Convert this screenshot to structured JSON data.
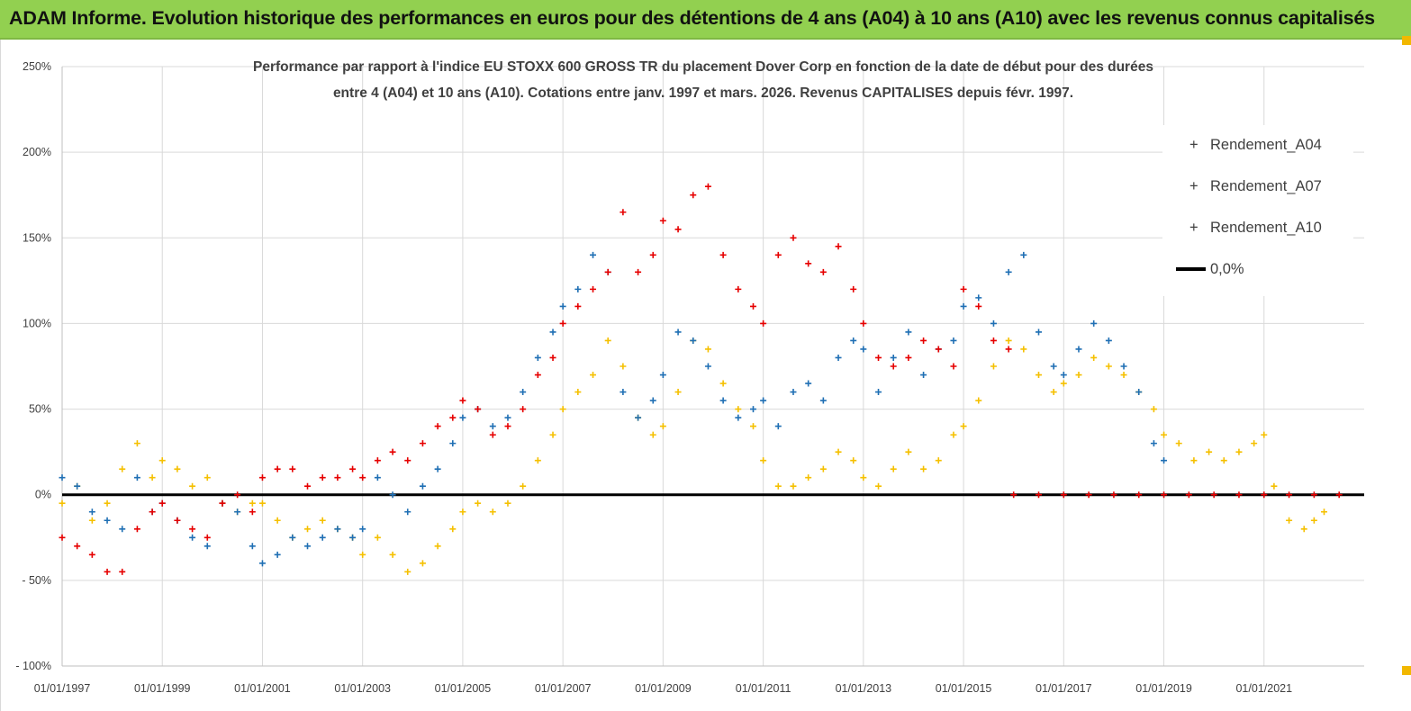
{
  "header": {
    "title": "ADAM Informe. Evolution historique des performances en euros pour des détentions de 4 ans (A04) à 10 ans (A10) avec les revenus connus capitalisés"
  },
  "colors": {
    "banner": "#92d050",
    "a04": "#f5c000",
    "a07": "#1f6fb4",
    "a10": "#e60000",
    "zero": "#000000",
    "grid": "#d9d9d9"
  },
  "chart_data": {
    "type": "scatter",
    "title_lines": [
      "Performance par rapport à l'indice EU STOXX 600 GROSS TR  du placement Dover Corp en fonction de la date de début pour des durées",
      "entre 4 (A04) et 10 ans (A10).  Cotations entre janv. 1997 et mars. 2026. Revenus CAPITALISES depuis févr. 1997."
    ],
    "xlabel": "",
    "ylabel": "",
    "x_range": [
      "1997-01-01",
      "2023-01-01"
    ],
    "ylim": [
      -100,
      250
    ],
    "y_ticks": [
      250,
      200,
      150,
      100,
      50,
      0,
      -50,
      -100
    ],
    "y_tick_labels": [
      "250%",
      "200%",
      "150%",
      "100%",
      "50%",
      "0%",
      "- 50%",
      "- 100%"
    ],
    "x_ticks": [
      "1997-01-01",
      "1999-01-01",
      "2001-01-01",
      "2003-01-01",
      "2005-01-01",
      "2007-01-01",
      "2009-01-01",
      "2011-01-01",
      "2013-01-01",
      "2015-01-01",
      "2017-01-01",
      "2019-01-01",
      "2021-01-01"
    ],
    "x_tick_labels": [
      "01/01/1997",
      "01/01/1999",
      "01/01/2001",
      "01/01/2003",
      "01/01/2005",
      "01/01/2007",
      "01/01/2009",
      "01/01/2011",
      "01/01/2013",
      "01/01/2015",
      "01/01/2017",
      "01/01/2019",
      "01/01/2021"
    ],
    "grid": true,
    "legend_position": "top-right",
    "legend": [
      "Rendement_A04",
      "Rendement_A07",
      "Rendement_A10",
      "0,0%"
    ],
    "series": [
      {
        "name": "Rendement_A04",
        "color": "#f5c000",
        "marker": "+",
        "x": [
          1997.0,
          1997.3,
          1997.6,
          1997.9,
          1998.2,
          1998.5,
          1998.8,
          1999.0,
          1999.3,
          1999.6,
          1999.9,
          2000.2,
          2000.5,
          2000.8,
          2001.0,
          2001.3,
          2001.6,
          2001.9,
          2002.2,
          2002.5,
          2002.8,
          2003.0,
          2003.3,
          2003.6,
          2003.9,
          2004.2,
          2004.5,
          2004.8,
          2005.0,
          2005.3,
          2005.6,
          2005.9,
          2006.2,
          2006.5,
          2006.8,
          2007.0,
          2007.3,
          2007.6,
          2007.9,
          2008.2,
          2008.5,
          2008.8,
          2009.0,
          2009.3,
          2009.6,
          2009.9,
          2010.2,
          2010.5,
          2010.8,
          2011.0,
          2011.3,
          2011.6,
          2011.9,
          2012.2,
          2012.5,
          2012.8,
          2013.0,
          2013.3,
          2013.6,
          2013.9,
          2014.2,
          2014.5,
          2014.8,
          2015.0,
          2015.3,
          2015.6,
          2015.9,
          2016.2,
          2016.5,
          2016.8,
          2017.0,
          2017.3,
          2017.6,
          2017.9,
          2018.2,
          2018.5,
          2018.8,
          2019.0,
          2019.3,
          2019.6,
          2019.9,
          2020.2,
          2020.5,
          2020.8,
          2021.0,
          2021.2,
          2021.5,
          2021.8,
          2022.0,
          2022.2
        ],
        "y": [
          -5,
          5,
          -15,
          -5,
          15,
          30,
          10,
          20,
          15,
          5,
          10,
          -5,
          -10,
          -5,
          -5,
          -15,
          -25,
          -20,
          -15,
          -20,
          -25,
          -35,
          -25,
          -35,
          -45,
          -40,
          -30,
          -20,
          -10,
          -5,
          -10,
          -5,
          5,
          20,
          35,
          50,
          60,
          70,
          90,
          75,
          45,
          35,
          40,
          60,
          90,
          85,
          65,
          50,
          40,
          20,
          5,
          5,
          10,
          15,
          25,
          20,
          10,
          5,
          15,
          25,
          15,
          20,
          35,
          40,
          55,
          75,
          90,
          85,
          70,
          60,
          65,
          70,
          80,
          75,
          70,
          60,
          50,
          35,
          30,
          20,
          25,
          20,
          25,
          30,
          35,
          5,
          -15,
          -20,
          -15,
          -10
        ]
      },
      {
        "name": "Rendement_A07",
        "color": "#1f6fb4",
        "marker": "+",
        "x": [
          1997.0,
          1997.3,
          1997.6,
          1997.9,
          1998.2,
          1998.5,
          1998.8,
          1999.0,
          1999.3,
          1999.6,
          1999.9,
          2000.2,
          2000.5,
          2000.8,
          2001.0,
          2001.3,
          2001.6,
          2001.9,
          2002.2,
          2002.5,
          2002.8,
          2003.0,
          2003.3,
          2003.6,
          2003.9,
          2004.2,
          2004.5,
          2004.8,
          2005.0,
          2005.3,
          2005.6,
          2005.9,
          2006.2,
          2006.5,
          2006.8,
          2007.0,
          2007.3,
          2007.6,
          2007.9,
          2008.2,
          2008.5,
          2008.8,
          2009.0,
          2009.3,
          2009.6,
          2009.9,
          2010.2,
          2010.5,
          2010.8,
          2011.0,
          2011.3,
          2011.6,
          2011.9,
          2012.2,
          2012.5,
          2012.8,
          2013.0,
          2013.3,
          2013.6,
          2013.9,
          2014.2,
          2014.5,
          2014.8,
          2015.0,
          2015.3,
          2015.6,
          2015.9,
          2016.2,
          2016.5,
          2016.8,
          2017.0,
          2017.3,
          2017.6,
          2017.9,
          2018.2,
          2018.5,
          2018.8,
          2019.0
        ],
        "y": [
          10,
          5,
          -10,
          -15,
          -20,
          10,
          -10,
          -5,
          -15,
          -25,
          -30,
          -5,
          -10,
          -30,
          -40,
          -35,
          -25,
          -30,
          -25,
          -20,
          -25,
          -20,
          10,
          0,
          -10,
          5,
          15,
          30,
          45,
          50,
          40,
          45,
          60,
          80,
          95,
          110,
          120,
          140,
          130,
          60,
          45,
          55,
          70,
          95,
          90,
          75,
          55,
          45,
          50,
          55,
          40,
          60,
          65,
          55,
          80,
          90,
          85,
          60,
          80,
          95,
          70,
          85,
          90,
          110,
          115,
          100,
          130,
          140,
          95,
          75,
          70,
          85,
          100,
          90,
          75,
          60,
          30,
          20
        ]
      },
      {
        "name": "Rendement_A10",
        "color": "#e60000",
        "marker": "+",
        "x": [
          1997.0,
          1997.3,
          1997.6,
          1997.9,
          1998.2,
          1998.5,
          1998.8,
          1999.0,
          1999.3,
          1999.6,
          1999.9,
          2000.2,
          2000.5,
          2000.8,
          2001.0,
          2001.3,
          2001.6,
          2001.9,
          2002.2,
          2002.5,
          2002.8,
          2003.0,
          2003.3,
          2003.6,
          2003.9,
          2004.2,
          2004.5,
          2004.8,
          2005.0,
          2005.3,
          2005.6,
          2005.9,
          2006.2,
          2006.5,
          2006.8,
          2007.0,
          2007.3,
          2007.6,
          2007.9,
          2008.2,
          2008.5,
          2008.8,
          2009.0,
          2009.3,
          2009.6,
          2009.9,
          2010.2,
          2010.5,
          2010.8,
          2011.0,
          2011.3,
          2011.6,
          2011.9,
          2012.2,
          2012.5,
          2012.8,
          2013.0,
          2013.3,
          2013.6,
          2013.9,
          2014.2,
          2014.5,
          2014.8,
          2015.0,
          2015.3,
          2015.6,
          2015.9,
          2016.0,
          2016.5,
          2017.0,
          2017.5,
          2018.0,
          2018.5,
          2019.0,
          2019.5,
          2020.0,
          2020.5,
          2021.0,
          2021.5,
          2022.0,
          2022.5
        ],
        "y": [
          -25,
          -30,
          -35,
          -45,
          -45,
          -20,
          -10,
          -5,
          -15,
          -20,
          -25,
          -5,
          0,
          -10,
          10,
          15,
          15,
          5,
          10,
          10,
          15,
          10,
          20,
          25,
          20,
          30,
          40,
          45,
          55,
          50,
          35,
          40,
          50,
          70,
          80,
          100,
          110,
          120,
          130,
          165,
          130,
          140,
          160,
          155,
          175,
          180,
          140,
          120,
          110,
          100,
          140,
          150,
          135,
          130,
          145,
          120,
          100,
          80,
          75,
          80,
          90,
          85,
          75,
          120,
          110,
          90,
          85,
          0,
          0,
          0,
          0,
          0,
          0,
          0,
          0,
          0,
          0,
          0,
          0,
          0,
          0
        ]
      }
    ],
    "reference_line": {
      "name": "0,0%",
      "value": 0,
      "color": "#000000"
    }
  }
}
